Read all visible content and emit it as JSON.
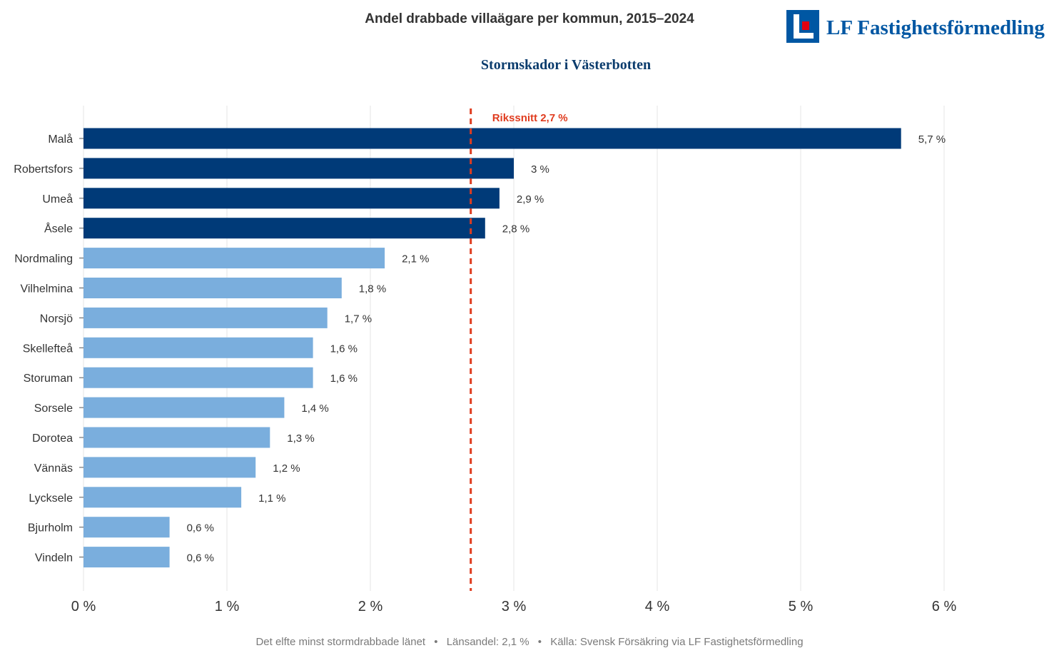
{
  "header": {
    "title": "Andel drabbade villaägare per kommun, 2015–2024",
    "subtitle": "Stormskador i Västerbotten",
    "brand": "LF Fastighetsförmedling"
  },
  "footer": {
    "items": [
      "Det elfte minst stormdrabbade länet",
      "Länsandel: 2,1 %",
      "Källa: Svensk Försäkring via LF Fastighetsförmedling"
    ],
    "separator": "•"
  },
  "colors": {
    "highlight": "#003a78",
    "normal": "#7aaedd",
    "reference": "#e03c1f",
    "grid": "#e6e6e6",
    "brand": "#0057a3",
    "brand_accent": "#e3000f",
    "subtitle": "#0b3c6d"
  },
  "chart_data": {
    "type": "bar",
    "orientation": "horizontal",
    "title": "Andel drabbade villaägare per kommun, 2015–2024",
    "subtitle": "Stormskador i Västerbotten",
    "xlabel": "",
    "ylabel": "",
    "xlim": [
      0,
      6
    ],
    "x_ticks": [
      0,
      1,
      2,
      3,
      4,
      5,
      6
    ],
    "x_tick_labels": [
      "0 %",
      "1 %",
      "2 %",
      "3 %",
      "4 %",
      "5 %",
      "6 %"
    ],
    "grid": true,
    "categories": [
      "Malå",
      "Robertsfors",
      "Umeå",
      "Åsele",
      "Nordmaling",
      "Vilhelmina",
      "Norsjö",
      "Skellefteå",
      "Storuman",
      "Sorsele",
      "Dorotea",
      "Vännäs",
      "Lycksele",
      "Bjurholm",
      "Vindeln"
    ],
    "values": [
      5.7,
      3.0,
      2.9,
      2.8,
      2.1,
      1.8,
      1.7,
      1.6,
      1.6,
      1.4,
      1.3,
      1.2,
      1.1,
      0.6,
      0.6
    ],
    "value_labels": [
      "5,7 %",
      "3 %",
      "2,9 %",
      "2,8 %",
      "2,1 %",
      "1,8 %",
      "1,7 %",
      "1,6 %",
      "1,6 %",
      "1,4 %",
      "1,3 %",
      "1,2 %",
      "1,1 %",
      "0,6 %",
      "0,6 %"
    ],
    "highlighted": [
      true,
      true,
      true,
      true,
      false,
      false,
      false,
      false,
      false,
      false,
      false,
      false,
      false,
      false,
      false
    ],
    "reference_line": {
      "value": 2.7,
      "label": "Rikssnitt 2,7 %"
    }
  }
}
